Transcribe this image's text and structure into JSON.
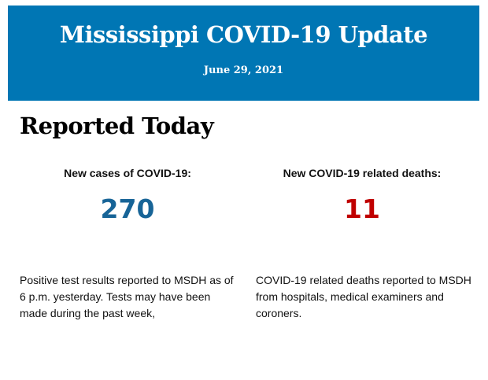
{
  "header": {
    "title": "Mississippi COVID-19 Update",
    "date": "June 29, 2021"
  },
  "section_title": "Reported Today",
  "cases": {
    "label": "New cases of COVID-19:",
    "value": "270",
    "description": "Positive test results reported to MSDH as of 6 p.m. yesterday. Tests may have been made during the past week,",
    "color": "#176497"
  },
  "deaths": {
    "label": "New COVID-19 related deaths:",
    "value": "11",
    "description": "COVID-19 related deaths reported to MSDH from hospitals, medical examiners and coroners.",
    "color": "#c00000"
  },
  "colors": {
    "banner": "#0076b4"
  }
}
